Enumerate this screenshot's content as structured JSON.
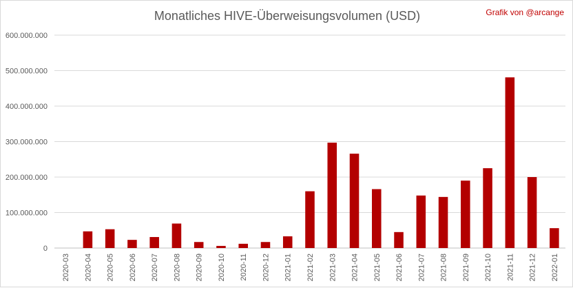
{
  "chart_data": {
    "type": "bar",
    "title": "Monatliches HIVE-Überweisungsvolumen (USD)",
    "annotation": "Grafik von @arcange",
    "xlabel": "",
    "ylabel": "",
    "ylim": [
      0,
      600000000
    ],
    "yticks": [
      "0",
      "100.000.000",
      "200.000.000",
      "300.000.000",
      "400.000.000",
      "500.000.000",
      "600.000.000"
    ],
    "grid": true,
    "legend": "none",
    "bar_color": "#b30000",
    "categories": [
      "2020-03",
      "2020-04",
      "2020-05",
      "2020-06",
      "2020-07",
      "2020-08",
      "2020-09",
      "2020-10",
      "2020-11",
      "2020-12",
      "2021-01",
      "2021-02",
      "2021-03",
      "2021-04",
      "2021-05",
      "2021-06",
      "2021-07",
      "2021-08",
      "2021-09",
      "2021-10",
      "2021-11",
      "2021-12",
      "2022-01"
    ],
    "values": [
      0,
      47000000,
      53000000,
      23000000,
      31000000,
      69000000,
      17000000,
      6000000,
      12000000,
      17000000,
      33000000,
      160000000,
      297000000,
      266000000,
      166000000,
      45000000,
      148000000,
      144000000,
      190000000,
      225000000,
      481000000,
      200000000,
      56000000
    ]
  }
}
